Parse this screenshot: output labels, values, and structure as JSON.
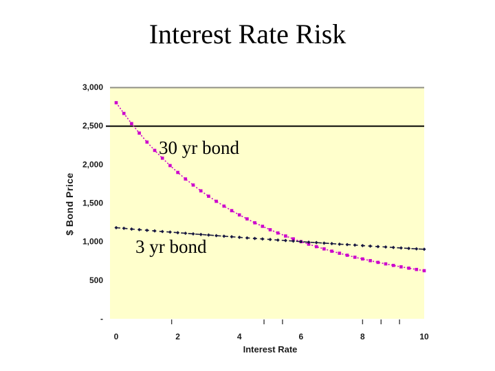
{
  "slide": {
    "title": "Interest Rate Risk"
  },
  "chart_data": {
    "type": "line",
    "title": "",
    "xlabel": "Interest Rate",
    "ylabel": "$ Bond Price",
    "xlim": [
      0,
      10
    ],
    "ylim": [
      0,
      3000
    ],
    "plot_bg": "#ffffcc",
    "grid": "partial",
    "legend_position": "none",
    "x_tick_values": [
      0,
      2,
      4,
      6,
      8,
      10
    ],
    "x_tick_labels": [
      "0",
      "2",
      "4",
      "6",
      "8",
      "10"
    ],
    "x_minor_tick_values": [
      1.8,
      4.8,
      5.4,
      8.0,
      8.6,
      9.2
    ],
    "y_tick_values": [
      3000,
      2500,
      2000,
      1500,
      1000,
      500,
      0
    ],
    "y_tick_labels": [
      "3,000",
      "2,500",
      "2,000",
      "1,500",
      "1,000",
      "500",
      "-"
    ],
    "hlines": [
      {
        "y": 3000,
        "color": "#8f8f85",
        "width": 2,
        "overhang": false
      },
      {
        "y": 2500,
        "color": "#000000",
        "width": 2,
        "overhang": true
      }
    ],
    "x_start": 0,
    "x_step": 0.25,
    "series": [
      {
        "name": "30 yr bond",
        "color": "#cc00cc",
        "marker": "square",
        "marker_size": 4.6,
        "dash": "2 2.6",
        "values": [
          2800,
          2661,
          2529,
          2406,
          2290,
          2182,
          2081,
          1985,
          1896,
          1812,
          1733,
          1658,
          1588,
          1522,
          1460,
          1401,
          1346,
          1294,
          1244,
          1198,
          1154,
          1112,
          1073,
          1035,
          1000,
          967,
          935,
          905,
          876,
          849,
          823,
          798,
          775,
          753,
          731,
          711,
          692,
          673,
          656,
          639,
          623
        ]
      },
      {
        "name": "3 yr bond",
        "color": "#181840",
        "marker": "diamond",
        "marker_size": 3.6,
        "dash": "6 4.5",
        "values": [
          1180,
          1172,
          1163,
          1155,
          1147,
          1139,
          1131,
          1123,
          1115,
          1108,
          1100,
          1092,
          1085,
          1077,
          1070,
          1063,
          1056,
          1048,
          1041,
          1034,
          1027,
          1020,
          1014,
          1007,
          1000,
          993,
          987,
          980,
          974,
          967,
          961,
          955,
          948,
          942,
          936,
          930,
          924,
          918,
          912,
          906,
          901
        ]
      }
    ],
    "annotations": {
      "bond30": "30 yr bond",
      "bond3": "3 yr bond"
    }
  }
}
